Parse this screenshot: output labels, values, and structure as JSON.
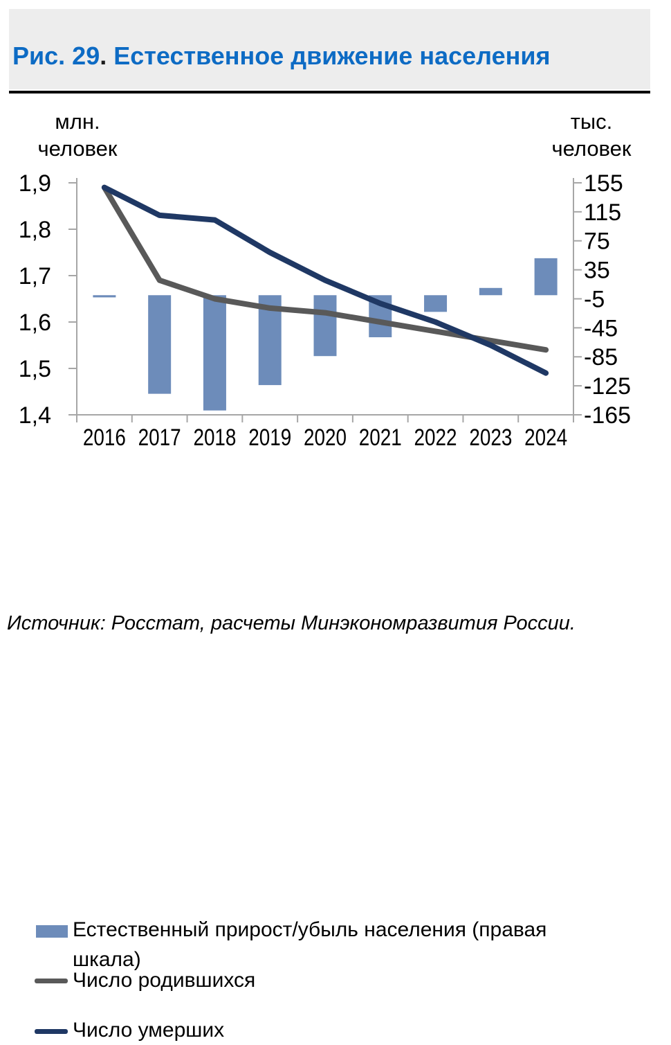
{
  "ui": {
    "title_color": "#0d6bc4",
    "dot_color": "#1a1a1a",
    "header_bg": "#ededed",
    "rule_color": "#000000",
    "axis_color": "#a6a6a6",
    "bar_color": "#6d8cba",
    "births_line_color": "#595959",
    "deaths_line_color": "#1f3864"
  },
  "header": {
    "fig_label": "Рис. 29",
    "dot": ". ",
    "title": "Естественное движение населения"
  },
  "axis_units": {
    "left_line1": "млн.",
    "left_line2": "человек",
    "right_line1": "тыс.",
    "right_line2": "человек"
  },
  "chart_data": {
    "type": "combo: bar + 2 lines, dual axis",
    "title": "Естественное движение населения",
    "categories": [
      "2016",
      "2017",
      "2018",
      "2019",
      "2020",
      "2021",
      "2022",
      "2023",
      "2024"
    ],
    "series": [
      {
        "name": "Естественный прирост/убыль населения (правая шкала)",
        "type": "bar",
        "axis": "right",
        "color": "#6d8cba",
        "values": [
          -3,
          -136,
          -159,
          -124,
          -84,
          -58,
          -23,
          10,
          51
        ]
      },
      {
        "name": "Число родившихся",
        "type": "line",
        "axis": "left",
        "color": "#595959",
        "values": [
          1.89,
          1.69,
          1.65,
          1.63,
          1.62,
          1.6,
          1.58,
          1.56,
          1.54
        ]
      },
      {
        "name": "Число умерших",
        "type": "line",
        "axis": "left",
        "color": "#1f3864",
        "values": [
          1.89,
          1.83,
          1.82,
          1.75,
          1.69,
          1.64,
          1.6,
          1.55,
          1.49
        ]
      }
    ],
    "left_axis": {
      "label": "млн. человек",
      "min": 1.4,
      "max": 1.9,
      "ticks": [
        "1,9",
        "1,8",
        "1,7",
        "1,6",
        "1,5",
        "1,4"
      ]
    },
    "right_axis": {
      "label": "тыс. человек",
      "min": -165,
      "max": 155,
      "ticks": [
        "155",
        "115",
        "75",
        "35",
        "-5",
        "-45",
        "-85",
        "-125",
        "-165"
      ]
    },
    "grid": "off",
    "legend_position": "bottom-left"
  },
  "legend": {
    "items": [
      {
        "label": "Естественный прирост/убыль населения (правая шкала)",
        "swatch": "bar",
        "color": "#6d8cba"
      },
      {
        "label": "Число родившихся",
        "swatch": "line",
        "color": "#595959"
      },
      {
        "label": "Число умерших",
        "swatch": "line",
        "color": "#1f3864"
      }
    ]
  },
  "source": "Источник: Росстат, расчеты Минэкономразвития России."
}
